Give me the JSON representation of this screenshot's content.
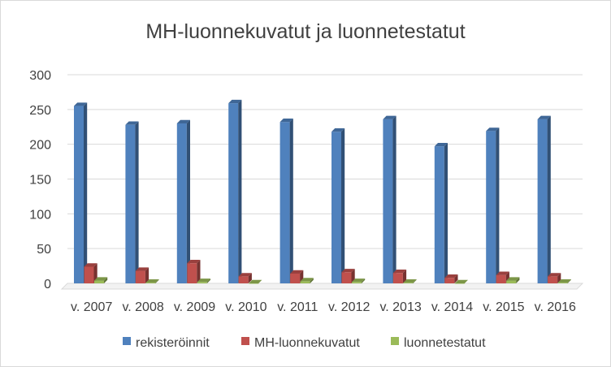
{
  "chart_data": {
    "type": "bar",
    "title": "MH-luonnekuvatut ja luonnetestatut",
    "categories": [
      "v. 2007",
      "v. 2008",
      "v. 2009",
      "v. 2010",
      "v. 2011",
      "v. 2012",
      "v. 2013",
      "v. 2014",
      "v. 2015",
      "v. 2016"
    ],
    "series": [
      {
        "name": "rekisteröinnit",
        "color": "#4f81bd",
        "values": [
          255,
          228,
          230,
          259,
          232,
          218,
          236,
          197,
          219,
          236
        ]
      },
      {
        "name": "MH-luonnekuvatut",
        "color": "#c0504d",
        "values": [
          24,
          18,
          29,
          10,
          14,
          16,
          15,
          8,
          12,
          10
        ]
      },
      {
        "name": "luonnetestatut",
        "color": "#9bbb59",
        "values": [
          4,
          1,
          2,
          0,
          3,
          2,
          1,
          0,
          4,
          1
        ]
      }
    ],
    "ylim": [
      0,
      300
    ],
    "yticks": [
      0,
      50,
      100,
      150,
      200,
      250,
      300
    ],
    "grid": true,
    "legend_position": "bottom",
    "style": "3d-clustered-column"
  }
}
